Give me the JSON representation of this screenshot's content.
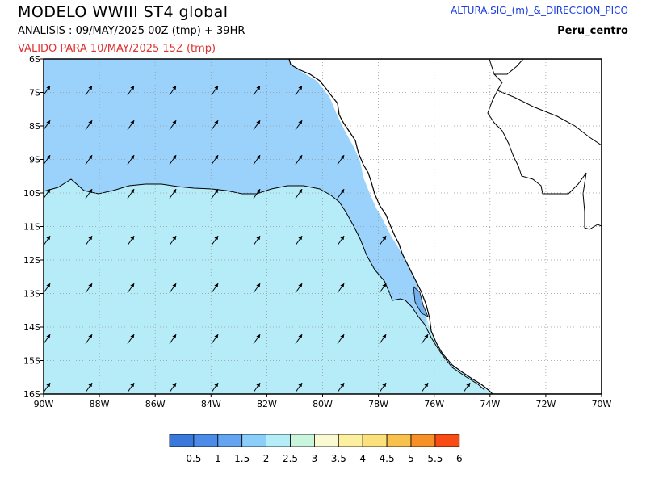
{
  "header": {
    "title": "MODELO  WWIII  ST4  global",
    "analysis": "ANALISIS : 09/MAY/2025 00Z  (tmp) + 39HR",
    "valid": "VALIDO PARA  10/MAY/2025 15Z  (tmp)",
    "product": "ALTURA.SIG_(m)_&_DIRECCION_PICO",
    "region": "Peru_centro"
  },
  "map": {
    "lat_labels": [
      "6S",
      "7S",
      "8S",
      "9S",
      "10S",
      "11S",
      "12S",
      "13S",
      "14S",
      "15S",
      "16S"
    ],
    "lon_labels": [
      "90W",
      "88W",
      "86W",
      "84W",
      "82W",
      "80W",
      "78W",
      "76W",
      "74W",
      "72W",
      "70W"
    ],
    "field": "significant wave height (m)",
    "direction": "peak wave direction arrows, mostly pointing north-east"
  },
  "legend": {
    "levels": [
      "0.5",
      "1",
      "1.5",
      "2",
      "2.5",
      "3",
      "3.5",
      "4",
      "4.5",
      "5",
      "5.5",
      "6"
    ],
    "colors": [
      "#3a78dc",
      "#4c8ce8",
      "#64a4f0",
      "#8ccefa",
      "#b4ecf8",
      "#c8f5dc",
      "#fafad2",
      "#fcf0a0",
      "#fce07c",
      "#f8c04c",
      "#f89028",
      "#f84c14"
    ]
  },
  "colors": {
    "band_1_5_2": "#9ad2fb",
    "band_2_2_5": "#b6ecf8",
    "band_1_1_5": "#74b2ee",
    "land": "#ffffff"
  }
}
